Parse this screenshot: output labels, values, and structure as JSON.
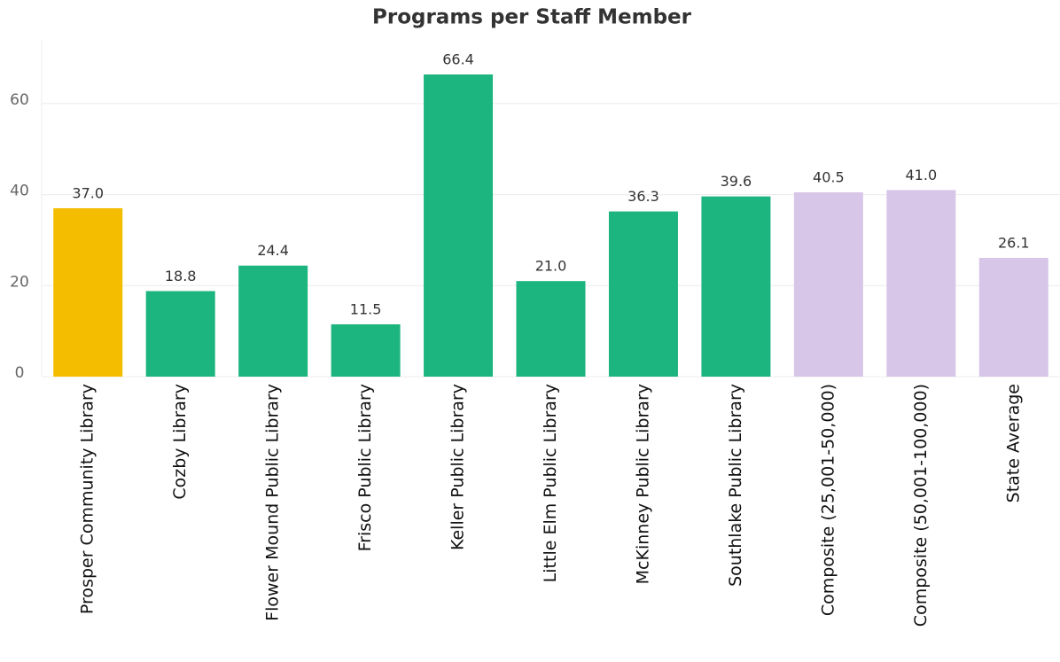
{
  "chart_data": {
    "type": "bar",
    "title": "Programs per Staff Member",
    "categories": [
      "Prosper Community Library",
      "Cozby Library",
      "Flower Mound Public Library",
      "Frisco Public Library",
      "Keller Public Library",
      "Little Elm Public Library",
      "McKinney Public Library",
      "Southlake Public Library",
      "Composite (25,001-50,000)",
      "Composite (50,001-100,000)",
      "State Average"
    ],
    "values": [
      37.0,
      18.8,
      24.4,
      11.5,
      66.4,
      21.0,
      36.3,
      39.6,
      40.5,
      41.0,
      26.1
    ],
    "value_labels": [
      "37.0",
      "18.8",
      "24.4",
      "11.5",
      "66.4",
      "21.0",
      "36.3",
      "39.6",
      "40.5",
      "41.0",
      "26.1"
    ],
    "colors": [
      "#f5bd00",
      "#1db57f",
      "#1db57f",
      "#1db57f",
      "#1db57f",
      "#1db57f",
      "#1db57f",
      "#1db57f",
      "#d8c6e8",
      "#d8c6e8",
      "#d8c6e8"
    ],
    "ylim": [
      0,
      74
    ],
    "yticks": [
      0,
      20,
      40,
      60
    ],
    "grid": true
  }
}
